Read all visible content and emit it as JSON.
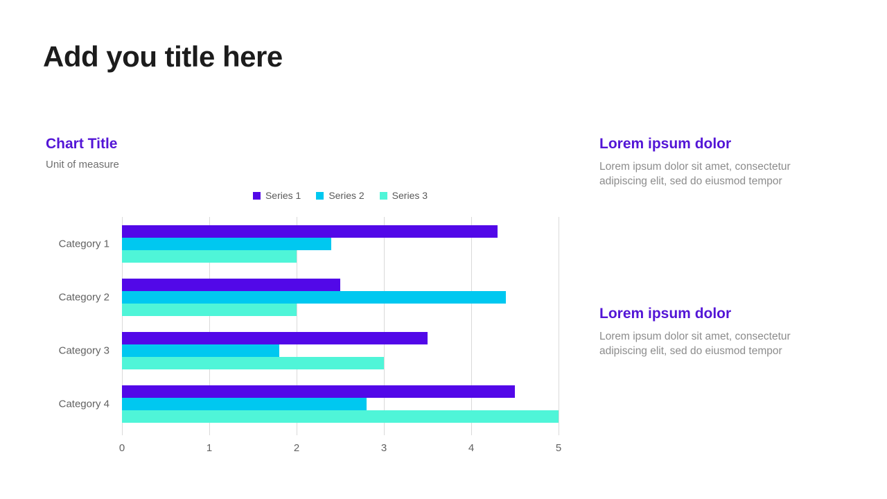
{
  "slide": {
    "title": "Add you title here"
  },
  "chart": {
    "title": "Chart Title",
    "subtitle": "Unit of measure"
  },
  "chart_data": {
    "type": "bar",
    "orientation": "horizontal",
    "title": "Chart Title",
    "subtitle": "Unit of measure",
    "categories": [
      "Category 1",
      "Category 2",
      "Category 3",
      "Category 4"
    ],
    "series": [
      {
        "name": "Series 1",
        "color": "#5208e8",
        "values": [
          4.3,
          2.5,
          3.5,
          4.5
        ]
      },
      {
        "name": "Series 2",
        "color": "#00c8f0",
        "values": [
          2.4,
          4.4,
          1.8,
          2.8
        ]
      },
      {
        "name": "Series 3",
        "color": "#4ff5d8",
        "values": [
          2.0,
          2.0,
          3.0,
          5.0
        ]
      }
    ],
    "xlabel": "",
    "ylabel": "",
    "xlim": [
      0,
      5
    ],
    "xticks": [
      0,
      1,
      2,
      3,
      4,
      5
    ],
    "grid": true,
    "legend_position": "top-center"
  },
  "text_blocks": [
    {
      "heading": "Lorem ipsum dolor",
      "body": "Lorem ipsum dolor sit amet, consectetur adipiscing elit, sed do eiusmod tempor"
    },
    {
      "heading": "Lorem ipsum dolor",
      "body": "Lorem ipsum dolor sit amet, consectetur adipiscing elit, sed do eiusmod tempor"
    }
  ],
  "colors": {
    "accent_purple": "#5315d6",
    "series1": "#5208e8",
    "series2": "#00c8f0",
    "series3": "#4ff5d8",
    "title_text": "#1c1c1c",
    "gray_text": "#6e6e6e",
    "gridline": "#d9d9d9"
  }
}
